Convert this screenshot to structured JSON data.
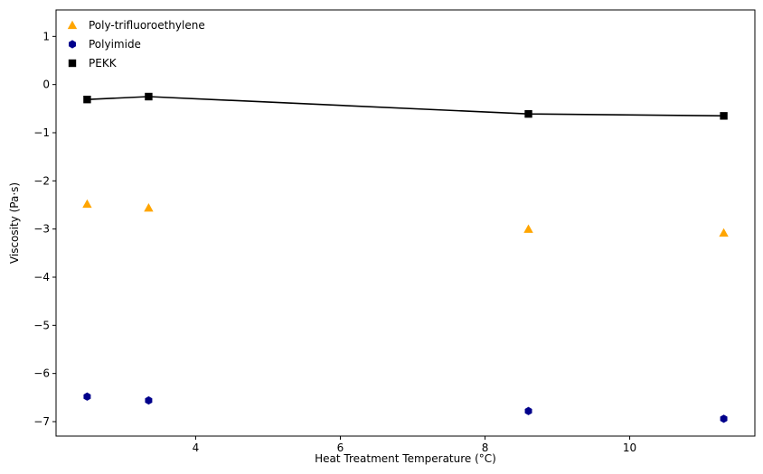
{
  "chart_data": {
    "type": "scatter",
    "title": "",
    "xlabel": "Heat Treatment Temperature (°C)",
    "ylabel": "Viscosity (Pa·s)",
    "xlim": [
      2.07,
      11.73
    ],
    "ylim": [
      -7.3,
      1.55
    ],
    "xticks": [
      4,
      6,
      8,
      10
    ],
    "yticks": [
      -7,
      -6,
      -5,
      -4,
      -3,
      -2,
      -1,
      0,
      1
    ],
    "x": [
      2.5,
      3.35,
      8.6,
      11.3
    ],
    "grid": false,
    "legend_position": "top-left",
    "series": [
      {
        "name": "Poly-trifluoroethylene",
        "marker": "triangle",
        "color": "#ffa500",
        "line": false,
        "values": [
          -2.48,
          -2.56,
          -3.0,
          -3.08
        ]
      },
      {
        "name": "Polyimide",
        "marker": "hexagon",
        "color": "#00008b",
        "line": false,
        "values": [
          -6.48,
          -6.56,
          -6.78,
          -6.94
        ]
      },
      {
        "name": "PEKK",
        "marker": "square",
        "color": "#000000",
        "line": true,
        "values": [
          -0.31,
          -0.25,
          -0.61,
          -0.65
        ]
      }
    ]
  }
}
